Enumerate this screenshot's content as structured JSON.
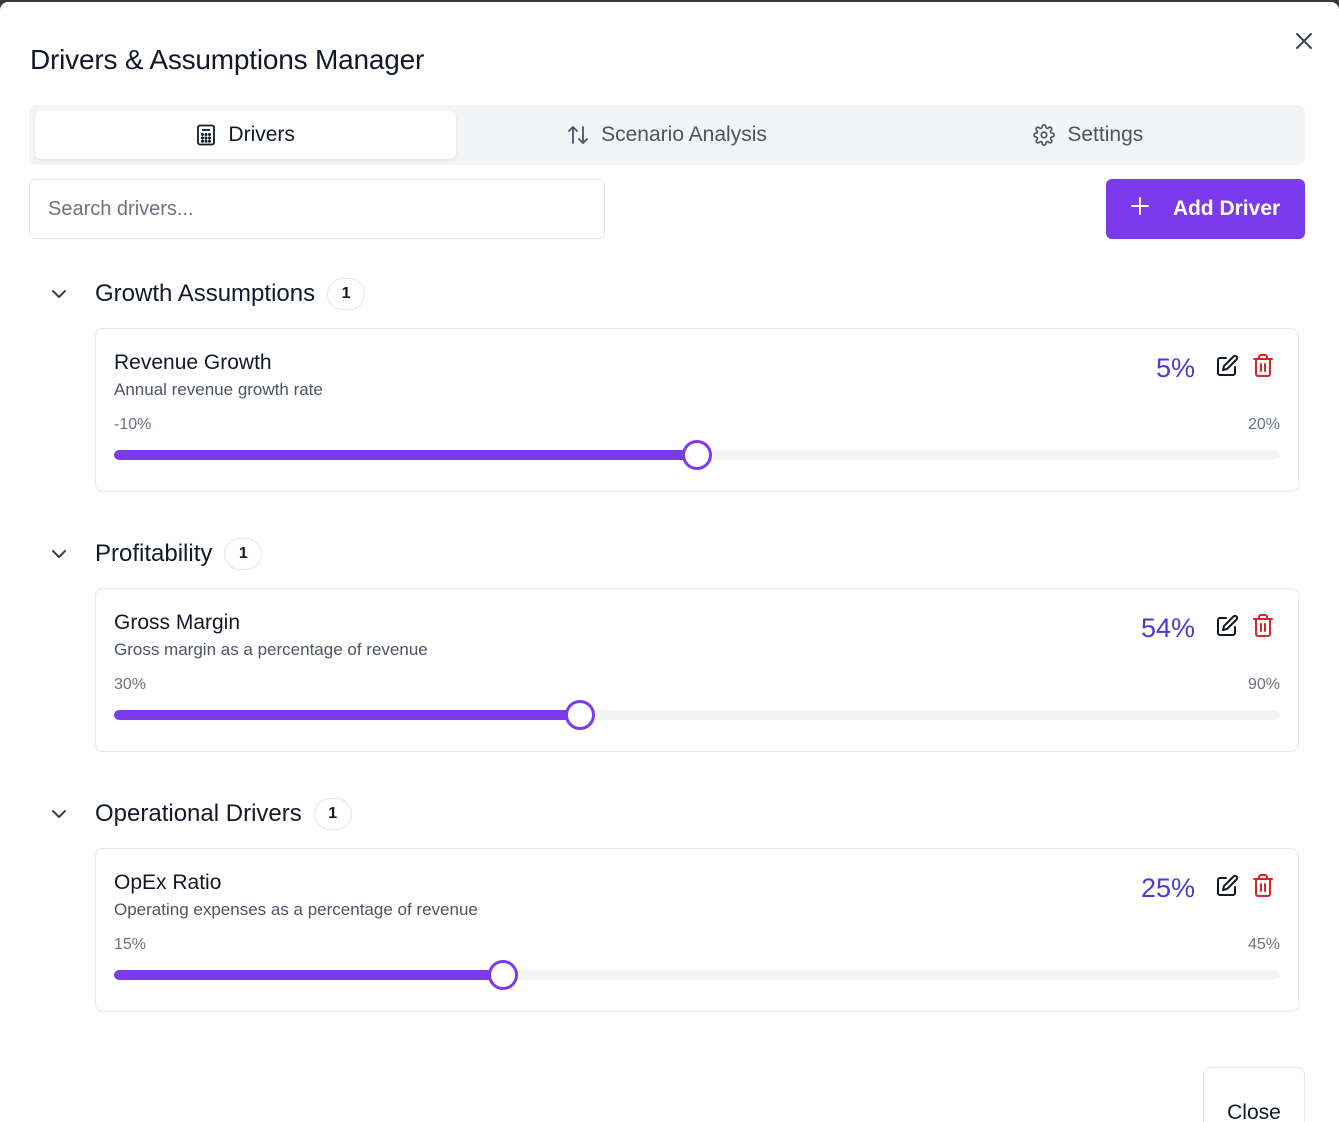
{
  "dialog": {
    "title": "Drivers & Assumptions Manager",
    "close_label": "Close"
  },
  "tabs": [
    {
      "label": "Drivers",
      "icon": "calculator-icon",
      "active": true
    },
    {
      "label": "Scenario Analysis",
      "icon": "arrows-up-down-icon",
      "active": false
    },
    {
      "label": "Settings",
      "icon": "gear-icon",
      "active": false
    }
  ],
  "search": {
    "placeholder": "Search drivers...",
    "value": ""
  },
  "add_button": {
    "label": "Add Driver",
    "icon": "plus-icon"
  },
  "colors": {
    "accent": "#7c3aed",
    "value_text": "#4c3bd1",
    "delete": "#dc2626",
    "track": "#f3f4f6"
  },
  "sections": [
    {
      "title": "Growth Assumptions",
      "count": "1",
      "drivers": [
        {
          "name": "Revenue Growth",
          "description": "Annual revenue growth rate",
          "value_label": "5%",
          "min_label": "-10%",
          "max_label": "20%",
          "min": -10,
          "max": 20,
          "value": 5
        }
      ]
    },
    {
      "title": "Profitability",
      "count": "1",
      "drivers": [
        {
          "name": "Gross Margin",
          "description": "Gross margin as a percentage of revenue",
          "value_label": "54%",
          "min_label": "30%",
          "max_label": "90%",
          "min": 30,
          "max": 90,
          "value": 54
        }
      ]
    },
    {
      "title": "Operational Drivers",
      "count": "1",
      "drivers": [
        {
          "name": "OpEx Ratio",
          "description": "Operating expenses as a percentage of revenue",
          "value_label": "25%",
          "min_label": "15%",
          "max_label": "45%",
          "min": 15,
          "max": 45,
          "value": 25
        }
      ]
    }
  ]
}
